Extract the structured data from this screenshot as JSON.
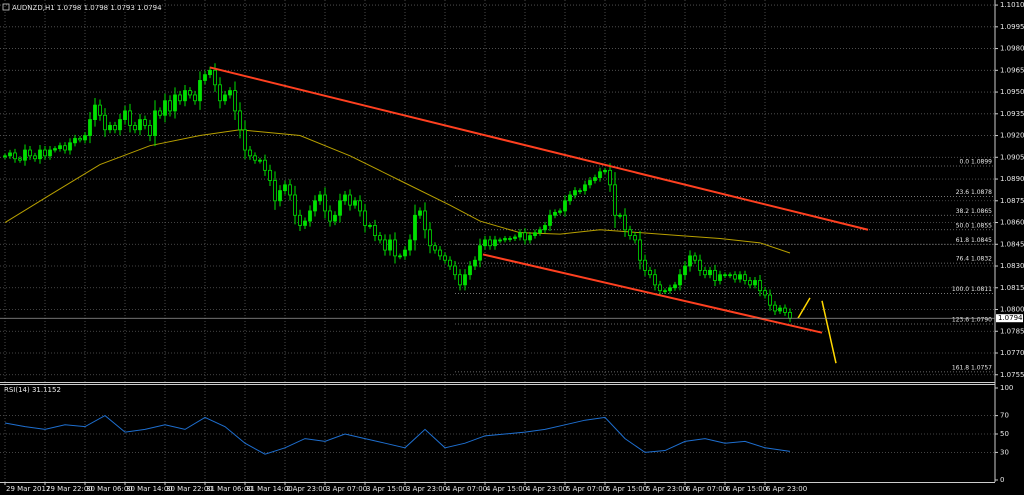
{
  "chart_data": [
    {
      "type": "candlestick",
      "title": "AUDNZD,H1 1.0798 1.0798 1.0793 1.0794",
      "close": [
        1.0906,
        1.0908,
        1.0904,
        1.0903,
        1.091,
        1.0906,
        1.0904,
        1.091,
        1.0906,
        1.091,
        1.0911,
        1.0913,
        1.091,
        1.0915,
        1.0918,
        1.0917,
        1.092,
        1.0931,
        1.0941,
        1.0934,
        1.0924,
        1.0927,
        1.0924,
        1.0931,
        1.0937,
        1.0927,
        1.0924,
        1.0931,
        1.0927,
        1.092,
        1.0937,
        1.0934,
        1.0944,
        1.0937,
        1.0948,
        1.0944,
        1.0951,
        1.0948,
        1.0944,
        1.0958,
        1.0962,
        1.0965,
        1.0955,
        1.0944,
        1.0948,
        1.0951,
        1.0937,
        1.0924,
        1.091,
        1.0906,
        1.0903,
        1.0903,
        1.0896,
        1.0889,
        1.0875,
        1.0882,
        1.0886,
        1.0879,
        1.0865,
        1.0858,
        1.0861,
        1.0868,
        1.0875,
        1.0879,
        1.0868,
        1.0861,
        1.0865,
        1.0875,
        1.0879,
        1.0872,
        1.0875,
        1.0868,
        1.0858,
        1.0858,
        1.0851,
        1.0848,
        1.0841,
        1.0848,
        1.0837,
        1.0837,
        1.0841,
        1.0848,
        1.0865,
        1.0868,
        1.0855,
        1.0844,
        1.0841,
        1.0837,
        1.0834,
        1.083,
        1.0824,
        1.0817,
        1.0824,
        1.083,
        1.0834,
        1.0844,
        1.0848,
        1.0844,
        1.0848,
        1.0848,
        1.0849,
        1.0849,
        1.085,
        1.0853,
        1.0848,
        1.0851,
        1.0853,
        1.0855,
        1.0858,
        1.0865,
        1.0867,
        1.0868,
        1.0875,
        1.0879,
        1.0882,
        1.0882,
        1.0886,
        1.0889,
        1.0891,
        1.0895,
        1.0896,
        1.0886,
        1.0865,
        1.0865,
        1.0855,
        1.0851,
        1.0848,
        1.0834,
        1.0827,
        1.0824,
        1.0817,
        1.0813,
        1.0813,
        1.0815,
        1.0817,
        1.0824,
        1.083,
        1.0837,
        1.0834,
        1.0827,
        1.0824,
        1.0827,
        1.082,
        1.0824,
        1.0824,
        1.0824,
        1.0821,
        1.0824,
        1.082,
        1.0817,
        1.082,
        1.0813,
        1.081,
        1.0803,
        1.0799,
        1.0801,
        1.0798,
        1.0794
      ],
      "bull_color": "#00e000",
      "bear_color": "#000000",
      "outline_color": "#00e000",
      "xlim": [
        -1,
        198
      ],
      "xticks": [
        {
          "value": 0,
          "label": "29 Mar 2017"
        },
        {
          "value": 8,
          "label": "29 Mar 22:00"
        },
        {
          "value": 16,
          "label": "30 Mar 06:00"
        },
        {
          "value": 24,
          "label": "30 Mar 14:00"
        },
        {
          "value": 32,
          "label": "30 Mar 22:00"
        },
        {
          "value": 40,
          "label": "31 Mar 06:00"
        },
        {
          "value": 48,
          "label": "31 Mar 14:00"
        },
        {
          "value": 56,
          "label": "2 Apr 23:00"
        },
        {
          "value": 64,
          "label": "3 Apr 07:00"
        },
        {
          "value": 72,
          "label": "3 Apr 15:00"
        },
        {
          "value": 80,
          "label": "3 Apr 23:00"
        },
        {
          "value": 88,
          "label": "4 Apr 07:00"
        },
        {
          "value": 96,
          "label": "4 Apr 15:00"
        },
        {
          "value": 104,
          "label": "4 Apr 23:00"
        },
        {
          "value": 112,
          "label": "5 Apr 07:00"
        },
        {
          "value": 120,
          "label": "5 Apr 15:00"
        },
        {
          "value": 128,
          "label": "5 Apr 23:00"
        },
        {
          "value": 136,
          "label": "6 Apr 07:00"
        },
        {
          "value": 144,
          "label": "6 Apr 15:00"
        },
        {
          "value": 152,
          "label": "6 Apr 23:00"
        }
      ],
      "ylim": [
        1.075,
        1.10135
      ],
      "yticks": [
        1.0755,
        {
          "value": 1.077,
          "label": "1.0770"
        },
        1.0785,
        {
          "value": 1.08,
          "label": "1.0800"
        },
        1.0815,
        {
          "value": 1.083,
          "label": "1.0830"
        },
        1.0845,
        {
          "value": 1.086,
          "label": "1.0860"
        },
        1.0875,
        {
          "value": 1.089,
          "label": "1.0890"
        },
        1.0905,
        {
          "value": 1.092,
          "label": "1.0920"
        },
        1.0935,
        {
          "value": 1.095,
          "label": "1.0950"
        },
        1.0965,
        {
          "value": 1.098,
          "label": "1.0980"
        },
        1.0995,
        {
          "value": 1.101,
          "label": "1.1010"
        }
      ],
      "grid": true,
      "ma": {
        "color": "#b8a000",
        "x": [
          0,
          9,
          19,
          29,
          39,
          47,
          59,
          69,
          79,
          89,
          95,
          103,
          111,
          119,
          127,
          135,
          143,
          151,
          157
        ],
        "values": [
          1.086,
          1.0879,
          1.09,
          1.0913,
          1.092,
          1.0924,
          1.092,
          1.0906,
          1.0889,
          1.0872,
          1.0861,
          1.0853,
          1.0852,
          1.0855,
          1.0853,
          1.0851,
          1.0849,
          1.0846,
          1.0839
        ]
      },
      "trendlines": {
        "color": "#ff4020",
        "lines": [
          {
            "x": [
              41,
              172.6
            ],
            "values": [
              1.0967,
              1.0855
            ]
          },
          {
            "x": [
              95.6,
              163.4
            ],
            "values": [
              1.0838,
              1.0784
            ]
          }
        ]
      },
      "projections": {
        "color": "#ffd700",
        "lines": [
          {
            "x": [
              158.6,
              161
            ],
            "values": [
              1.0794,
              1.0808
            ]
          },
          {
            "x": [
              163.4,
              166.2
            ],
            "values": [
              1.0806,
              1.0763
            ]
          }
        ]
      },
      "fib_x": [
        90,
        198
      ],
      "fib_levels": [
        {
          "value": 1.0899,
          "label": "0.0 1.0899"
        },
        {
          "value": 1.0878,
          "label": "23.6 1.0878"
        },
        {
          "value": 1.0865,
          "label": "38.2 1.0865"
        },
        {
          "value": 1.0855,
          "label": "50.0 1.0855"
        },
        {
          "value": 1.0845,
          "label": "61.8 1.0845"
        },
        {
          "value": 1.0832,
          "label": "76.4 1.0832"
        },
        {
          "value": 1.0811,
          "label": "100.0 1.0811"
        },
        {
          "value": 1.079,
          "label": "123.6 1.0790"
        },
        {
          "value": 1.0757,
          "label": "161.8 1.0757"
        }
      ],
      "current_price": 1.0794
    },
    {
      "type": "line",
      "title": "RSI(14) 31.1152",
      "color": "#1e6fd0",
      "x": [
        0,
        4,
        8,
        12,
        16,
        20,
        24,
        28,
        32,
        36,
        40,
        44,
        48,
        52,
        56,
        60,
        64,
        68,
        72,
        76,
        80,
        84,
        88,
        92,
        96,
        100,
        104,
        108,
        112,
        116,
        120,
        124,
        128,
        132,
        136,
        140,
        144,
        148,
        152,
        157
      ],
      "values": [
        62,
        58,
        55,
        60,
        58,
        70,
        52,
        55,
        60,
        55,
        68,
        58,
        40,
        28,
        35,
        45,
        42,
        50,
        45,
        40,
        35,
        55,
        35,
        40,
        48,
        50,
        52,
        55,
        60,
        65,
        68,
        45,
        30,
        32,
        42,
        45,
        40,
        42,
        35,
        31.1152
      ],
      "ylim": [
        0,
        100
      ],
      "yticks": [
        0,
        30,
        50,
        70,
        100
      ],
      "grid": true
    }
  ]
}
